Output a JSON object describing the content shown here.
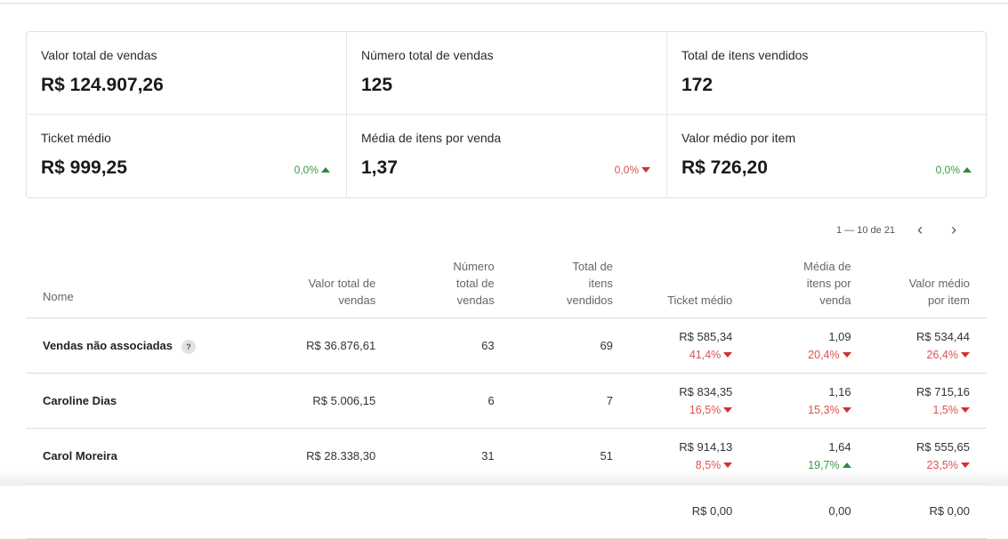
{
  "summary": [
    {
      "label": "Valor total de vendas",
      "value": "R$ 124.907,26"
    },
    {
      "label": "Número total de vendas",
      "value": "125"
    },
    {
      "label": "Total de itens vendidos",
      "value": "172"
    },
    {
      "label": "Ticket médio",
      "value": "R$ 999,25",
      "delta": "0,0%",
      "trend": "up"
    },
    {
      "label": "Média de itens por venda",
      "value": "1,37",
      "delta": "0,0%",
      "trend": "down"
    },
    {
      "label": "Valor médio por item",
      "value": "R$ 726,20",
      "delta": "0,0%",
      "trend": "up"
    }
  ],
  "pagination": {
    "range": "1 — 10 de 21",
    "prev_icon": "chevron-left-icon",
    "next_icon": "chevron-right-icon"
  },
  "table": {
    "headers": [
      "Nome",
      "Valor total de vendas",
      "Número total de vendas",
      "Total de itens vendidos",
      "Ticket médio",
      "Média de itens por venda",
      "Valor médio por item"
    ],
    "rows": [
      {
        "name": "Vendas não associadas",
        "help": "?",
        "total": "R$ 36.876,61",
        "count": "63",
        "items": "69",
        "ticket": "R$ 585,34",
        "ticket_d": "41,4%",
        "ticket_t": "down",
        "avg_items": "1,09",
        "avg_items_d": "20,4%",
        "avg_items_t": "down",
        "avg_val": "R$ 534,44",
        "avg_val_d": "26,4%",
        "avg_val_t": "down"
      },
      {
        "name": "Caroline Dias",
        "total": "R$ 5.006,15",
        "count": "6",
        "items": "7",
        "ticket": "R$ 834,35",
        "ticket_d": "16,5%",
        "ticket_t": "down",
        "avg_items": "1,16",
        "avg_items_d": "15,3%",
        "avg_items_t": "down",
        "avg_val": "R$ 715,16",
        "avg_val_d": "1,5%",
        "avg_val_t": "down"
      },
      {
        "name": "Carol Moreira",
        "total": "R$ 28.338,30",
        "count": "31",
        "items": "51",
        "ticket": "R$ 914,13",
        "ticket_d": "8,5%",
        "ticket_t": "down",
        "avg_items": "1,64",
        "avg_items_d": "19,7%",
        "avg_items_t": "up",
        "avg_val": "R$ 555,65",
        "avg_val_d": "23,5%",
        "avg_val_t": "down"
      },
      {
        "name": "",
        "total": "",
        "count": "",
        "items": "",
        "ticket": "R$ 0,00",
        "avg_items": "0,00",
        "avg_val": "R$ 0,00"
      }
    ]
  },
  "colors": {
    "up": "#3a9a48",
    "down": "#e05050"
  }
}
